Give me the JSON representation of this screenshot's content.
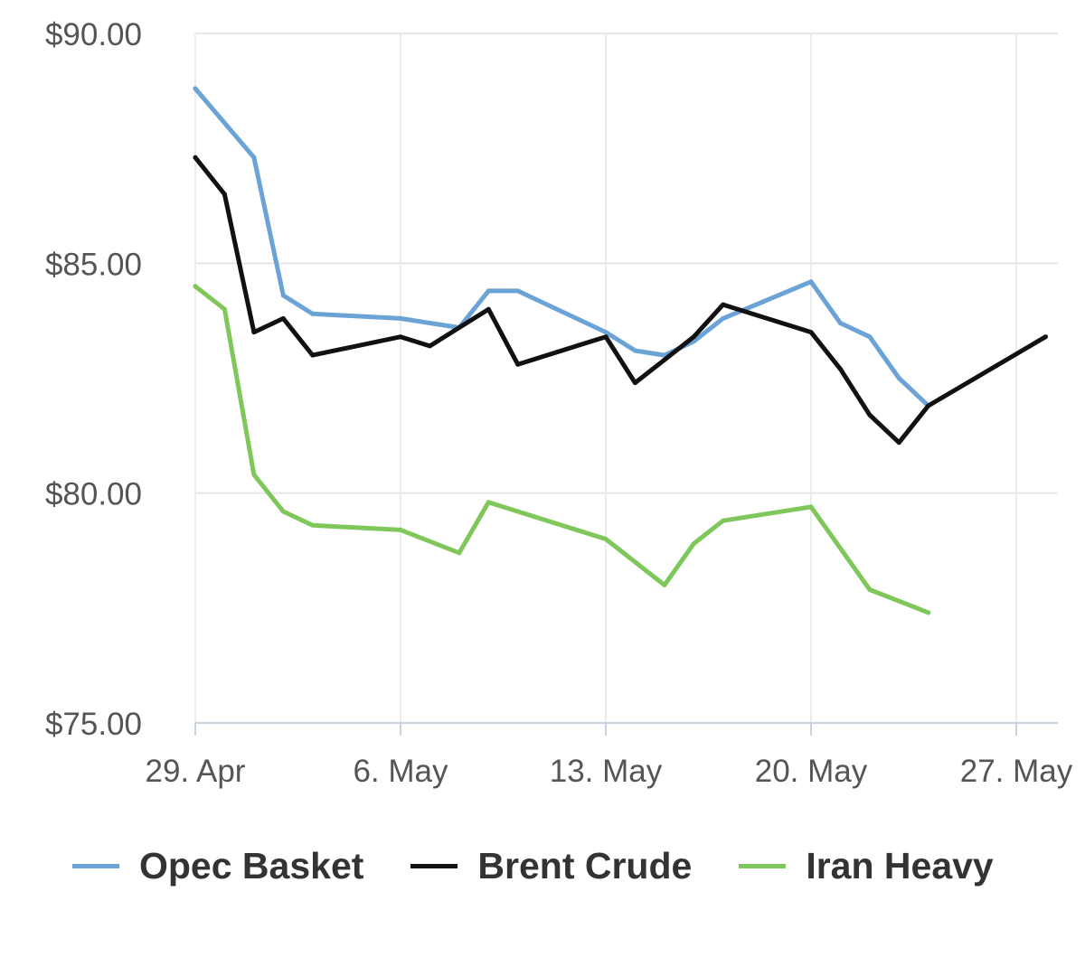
{
  "chart_data": {
    "type": "line",
    "x_ticks": [
      "29. Apr",
      "6. May",
      "13. May",
      "20. May",
      "27. May"
    ],
    "x_tick_dates": [
      "2024-04-29",
      "2024-05-06",
      "2024-05-13",
      "2024-05-20",
      "2024-05-27"
    ],
    "x_range": [
      "2024-04-29",
      "2024-05-28"
    ],
    "y_ticks": [
      "$75.00",
      "$80.00",
      "$85.00",
      "$90.00"
    ],
    "ylim": [
      75,
      90
    ],
    "grid": true,
    "legend_position": "bottom",
    "series": [
      {
        "name": "Opec Basket",
        "color": "#6ba3d6",
        "points": [
          {
            "x": "2024-04-29",
            "y": 88.8
          },
          {
            "x": "2024-05-01",
            "y": 87.3
          },
          {
            "x": "2024-05-02",
            "y": 84.3
          },
          {
            "x": "2024-05-03",
            "y": 83.9
          },
          {
            "x": "2024-05-06",
            "y": 83.8
          },
          {
            "x": "2024-05-07",
            "y": 83.7
          },
          {
            "x": "2024-05-08",
            "y": 83.6
          },
          {
            "x": "2024-05-09",
            "y": 84.4
          },
          {
            "x": "2024-05-10",
            "y": 84.4
          },
          {
            "x": "2024-05-13",
            "y": 83.5
          },
          {
            "x": "2024-05-14",
            "y": 83.1
          },
          {
            "x": "2024-05-15",
            "y": 83.0
          },
          {
            "x": "2024-05-16",
            "y": 83.3
          },
          {
            "x": "2024-05-17",
            "y": 83.8
          },
          {
            "x": "2024-05-20",
            "y": 84.6
          },
          {
            "x": "2024-05-21",
            "y": 83.7
          },
          {
            "x": "2024-05-22",
            "y": 83.4
          },
          {
            "x": "2024-05-23",
            "y": 82.5
          },
          {
            "x": "2024-05-24",
            "y": 81.9
          }
        ]
      },
      {
        "name": "Brent Crude",
        "color": "#111111",
        "points": [
          {
            "x": "2024-04-29",
            "y": 87.3
          },
          {
            "x": "2024-04-30",
            "y": 86.5
          },
          {
            "x": "2024-05-01",
            "y": 83.5
          },
          {
            "x": "2024-05-02",
            "y": 83.8
          },
          {
            "x": "2024-05-03",
            "y": 83.0
          },
          {
            "x": "2024-05-06",
            "y": 83.4
          },
          {
            "x": "2024-05-07",
            "y": 83.2
          },
          {
            "x": "2024-05-09",
            "y": 84.0
          },
          {
            "x": "2024-05-10",
            "y": 82.8
          },
          {
            "x": "2024-05-13",
            "y": 83.4
          },
          {
            "x": "2024-05-14",
            "y": 82.4
          },
          {
            "x": "2024-05-15",
            "y": 82.9
          },
          {
            "x": "2024-05-16",
            "y": 83.4
          },
          {
            "x": "2024-05-17",
            "y": 84.1
          },
          {
            "x": "2024-05-20",
            "y": 83.5
          },
          {
            "x": "2024-05-21",
            "y": 82.7
          },
          {
            "x": "2024-05-22",
            "y": 81.7
          },
          {
            "x": "2024-05-23",
            "y": 81.1
          },
          {
            "x": "2024-05-24",
            "y": 81.9
          },
          {
            "x": "2024-05-28",
            "y": 83.4
          }
        ]
      },
      {
        "name": "Iran Heavy",
        "color": "#7fc75a",
        "points": [
          {
            "x": "2024-04-29",
            "y": 84.5
          },
          {
            "x": "2024-04-30",
            "y": 84.0
          },
          {
            "x": "2024-05-01",
            "y": 80.4
          },
          {
            "x": "2024-05-02",
            "y": 79.6
          },
          {
            "x": "2024-05-03",
            "y": 79.3
          },
          {
            "x": "2024-05-06",
            "y": 79.2
          },
          {
            "x": "2024-05-08",
            "y": 78.7
          },
          {
            "x": "2024-05-09",
            "y": 79.8
          },
          {
            "x": "2024-05-10",
            "y": 79.6
          },
          {
            "x": "2024-05-13",
            "y": 79.0
          },
          {
            "x": "2024-05-15",
            "y": 78.0
          },
          {
            "x": "2024-05-16",
            "y": 78.9
          },
          {
            "x": "2024-05-17",
            "y": 79.4
          },
          {
            "x": "2024-05-20",
            "y": 79.7
          },
          {
            "x": "2024-05-22",
            "y": 77.9
          },
          {
            "x": "2024-05-24",
            "y": 77.4
          }
        ]
      }
    ]
  }
}
